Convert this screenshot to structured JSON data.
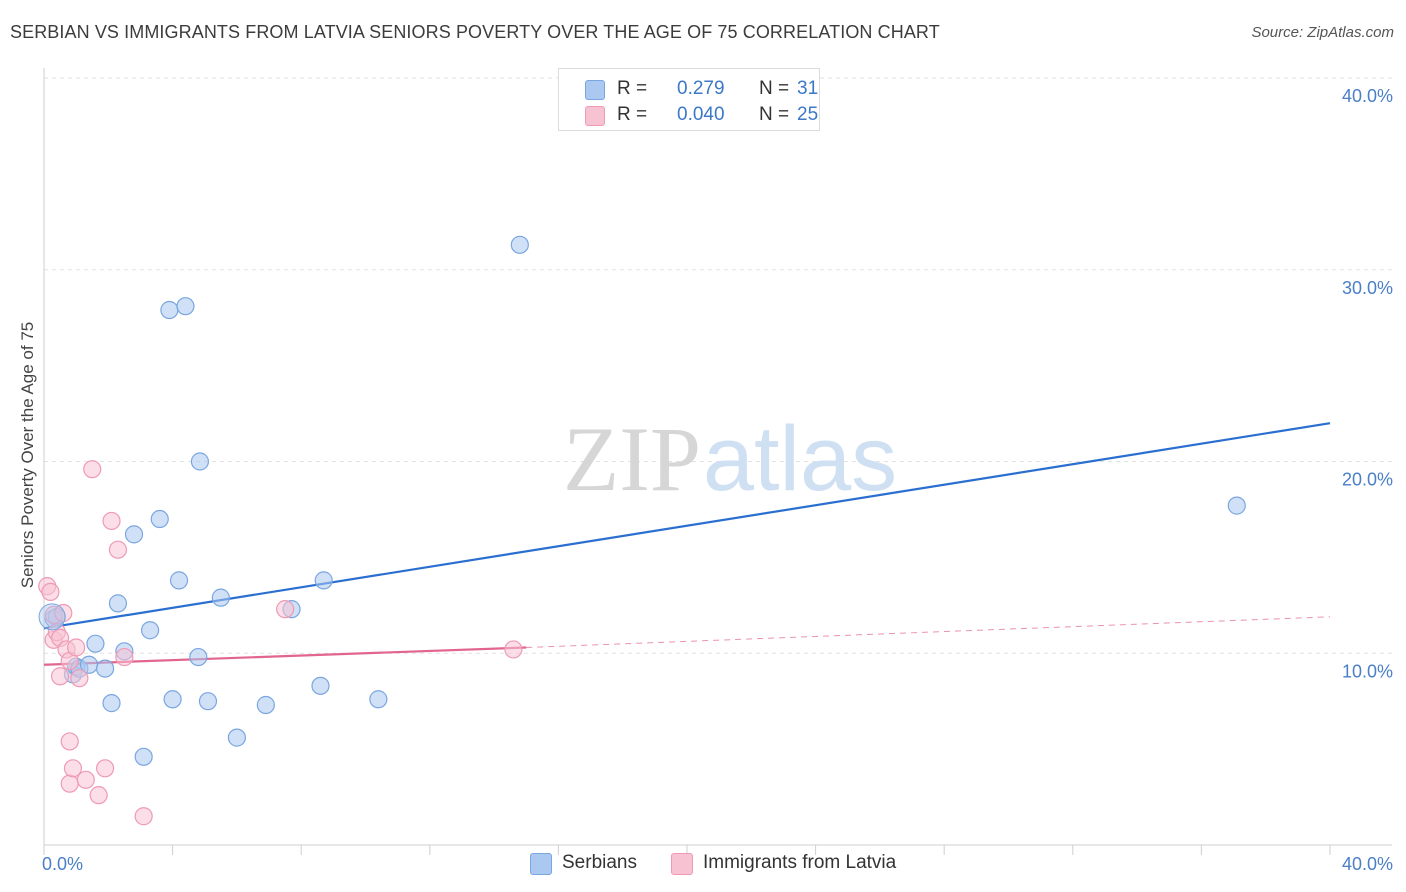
{
  "header": {
    "title": "SERBIAN VS IMMIGRANTS FROM LATVIA SENIORS POVERTY OVER THE AGE OF 75 CORRELATION CHART",
    "source": "Source: ZipAtlas.com"
  },
  "watermark": {
    "zip": "ZIP",
    "atlas": "atlas"
  },
  "legend": {
    "rows": [
      {
        "r_label": "R =",
        "r_value": "0.279",
        "n_label": "N =",
        "n_value": "31",
        "color": "#aac8f0",
        "border": "#7aa6e0"
      },
      {
        "r_label": "R =",
        "r_value": "0.040",
        "n_label": "N =",
        "n_value": "25",
        "color": "#f7c3d3",
        "border": "#ee9ab5"
      }
    ]
  },
  "bottom_legend": {
    "items": [
      {
        "label": "Serbians",
        "color": "#aac8f0",
        "border": "#7aa6e0"
      },
      {
        "label": "Immigrants from Latvia",
        "color": "#f7c3d3",
        "border": "#ee9ab5"
      }
    ]
  },
  "chart_data": {
    "type": "scatter",
    "title": "SERBIAN VS IMMIGRANTS FROM LATVIA SENIORS POVERTY OVER THE AGE OF 75 CORRELATION CHART",
    "xlabel": "",
    "ylabel": "Seniors Poverty Over the Age of 75",
    "xlim": [
      0,
      40
    ],
    "ylim": [
      0,
      40
    ],
    "x_tick_labels": [
      "0.0%",
      "40.0%"
    ],
    "y_ticks": [
      10,
      20,
      30,
      40
    ],
    "y_tick_labels": [
      "10.0%",
      "20.0%",
      "30.0%",
      "40.0%"
    ],
    "grid": true,
    "series": [
      {
        "name": "Serbians",
        "color": "#7aa6e0",
        "fill": "#aac8f0",
        "trend": {
          "x": [
            0,
            40
          ],
          "y": [
            11.3,
            22.0
          ],
          "color": "#2a6fd0"
        },
        "points": [
          {
            "x": 0.3,
            "y": 11.8
          },
          {
            "x": 0.4,
            "y": 11.9
          },
          {
            "x": 0.9,
            "y": 8.9
          },
          {
            "x": 1.0,
            "y": 9.3
          },
          {
            "x": 1.1,
            "y": 9.2
          },
          {
            "x": 1.4,
            "y": 9.4
          },
          {
            "x": 1.6,
            "y": 10.5
          },
          {
            "x": 1.9,
            "y": 9.2
          },
          {
            "x": 2.1,
            "y": 7.4
          },
          {
            "x": 2.3,
            "y": 12.6
          },
          {
            "x": 2.5,
            "y": 10.1
          },
          {
            "x": 2.8,
            "y": 16.2
          },
          {
            "x": 3.1,
            "y": 4.6
          },
          {
            "x": 3.3,
            "y": 11.2
          },
          {
            "x": 3.6,
            "y": 17.0
          },
          {
            "x": 3.9,
            "y": 27.9
          },
          {
            "x": 4.0,
            "y": 7.6
          },
          {
            "x": 4.2,
            "y": 13.8
          },
          {
            "x": 4.4,
            "y": 28.1
          },
          {
            "x": 4.8,
            "y": 9.8
          },
          {
            "x": 4.85,
            "y": 20.0
          },
          {
            "x": 5.1,
            "y": 7.5
          },
          {
            "x": 5.5,
            "y": 12.9
          },
          {
            "x": 6.0,
            "y": 5.6
          },
          {
            "x": 6.9,
            "y": 7.3
          },
          {
            "x": 7.7,
            "y": 12.3
          },
          {
            "x": 8.6,
            "y": 8.3
          },
          {
            "x": 8.7,
            "y": 13.8
          },
          {
            "x": 10.4,
            "y": 7.6
          },
          {
            "x": 14.8,
            "y": 31.3
          },
          {
            "x": 37.1,
            "y": 17.7
          }
        ]
      },
      {
        "name": "Immigrants from Latvia",
        "color": "#ee9ab5",
        "fill": "#f7c3d3",
        "trend": {
          "x": [
            0,
            15.0
          ],
          "y": [
            9.4,
            10.3
          ],
          "color": "#e2658d",
          "dashed_to": [
            40,
            11.9
          ]
        },
        "points": [
          {
            "x": 0.1,
            "y": 13.5
          },
          {
            "x": 0.2,
            "y": 13.2
          },
          {
            "x": 0.3,
            "y": 12.0
          },
          {
            "x": 0.3,
            "y": 10.7
          },
          {
            "x": 0.4,
            "y": 11.1
          },
          {
            "x": 0.5,
            "y": 10.8
          },
          {
            "x": 0.6,
            "y": 12.1
          },
          {
            "x": 0.5,
            "y": 8.8
          },
          {
            "x": 0.7,
            "y": 10.2
          },
          {
            "x": 0.8,
            "y": 9.6
          },
          {
            "x": 0.8,
            "y": 5.4
          },
          {
            "x": 0.8,
            "y": 3.2
          },
          {
            "x": 0.9,
            "y": 4.0
          },
          {
            "x": 1.0,
            "y": 10.3
          },
          {
            "x": 1.1,
            "y": 8.7
          },
          {
            "x": 1.3,
            "y": 3.4
          },
          {
            "x": 1.5,
            "y": 19.6
          },
          {
            "x": 1.7,
            "y": 2.6
          },
          {
            "x": 1.9,
            "y": 4.0
          },
          {
            "x": 2.1,
            "y": 16.9
          },
          {
            "x": 2.3,
            "y": 15.4
          },
          {
            "x": 2.5,
            "y": 9.8
          },
          {
            "x": 3.1,
            "y": 1.5
          },
          {
            "x": 7.5,
            "y": 12.3
          },
          {
            "x": 14.6,
            "y": 10.2
          }
        ]
      }
    ]
  }
}
